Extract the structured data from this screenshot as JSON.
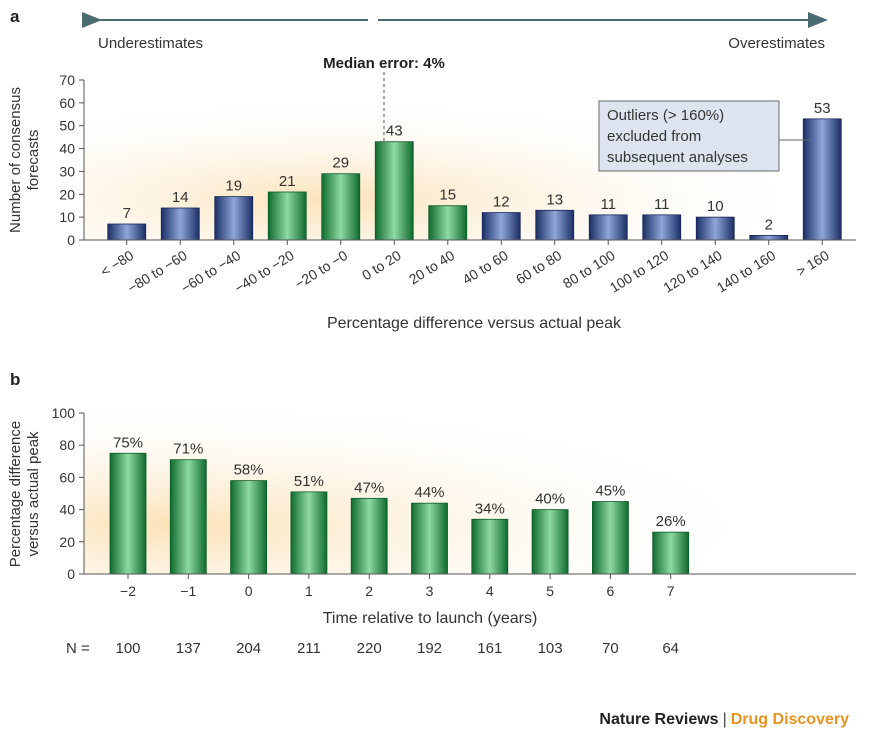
{
  "panel_a": {
    "label": "a",
    "underestimates": "Underestimates",
    "overestimates": "Overestimates",
    "median_label": "Median error: 4%",
    "outlier_note": [
      "Outliers (> 160%)",
      "excluded from",
      "subsequent analyses"
    ]
  },
  "panel_b": {
    "label": "b",
    "n_label": "N =",
    "n_values": [
      "100",
      "137",
      "204",
      "211",
      "220",
      "192",
      "161",
      "103",
      "70",
      "64"
    ]
  },
  "footer": {
    "journal": "Nature Reviews",
    "separator": "|",
    "section": "Drug Discovery"
  },
  "colors": {
    "green": "#2e9a4e",
    "blue": "#2e4a8c",
    "shade": "#fbe6c4",
    "arrow": "#4a6b6f"
  },
  "chart_data": [
    {
      "type": "bar",
      "title": "",
      "xlabel": "Percentage difference versus actual peak",
      "ylabel": [
        "Number of consensus",
        "forecasts"
      ],
      "ylim": [
        0,
        70
      ],
      "yticks": [
        "0",
        "10",
        "20",
        "30",
        "40",
        "50",
        "60",
        "70"
      ],
      "categories": [
        "< −80",
        "−80 to −60",
        "−60 to −40",
        "−40 to −20",
        "−20 to −0",
        "0 to 20",
        "20 to 40",
        "40 to 60",
        "60 to 80",
        "80 to 100",
        "100 to 120",
        "120 to 140",
        "140 to 160",
        "> 160"
      ],
      "values": [
        7,
        14,
        19,
        21,
        29,
        43,
        15,
        12,
        13,
        11,
        11,
        10,
        2,
        53
      ],
      "labels": [
        "7",
        "14",
        "19",
        "21",
        "29",
        "43",
        "15",
        "12",
        "13",
        "11",
        "11",
        "10",
        "2",
        "53"
      ],
      "bar_colors": [
        "blue",
        "blue",
        "blue",
        "green",
        "green",
        "green",
        "green",
        "blue",
        "blue",
        "blue",
        "blue",
        "blue",
        "blue",
        "blue"
      ],
      "median_x_between": "−20 to −0 | 0 to 20",
      "grid": false
    },
    {
      "type": "bar",
      "title": "",
      "xlabel": "Time relative to launch (years)",
      "ylabel": [
        "Percentage difference",
        "versus actual peak"
      ],
      "ylim": [
        0,
        100
      ],
      "yticks": [
        "0",
        "20",
        "40",
        "60",
        "80",
        "100"
      ],
      "categories": [
        "−2",
        "−1",
        "0",
        "1",
        "2",
        "3",
        "4",
        "5",
        "6",
        "7"
      ],
      "values": [
        75,
        71,
        58,
        51,
        47,
        44,
        34,
        40,
        45,
        26
      ],
      "labels": [
        "75%",
        "71%",
        "58%",
        "51%",
        "47%",
        "44%",
        "34%",
        "40%",
        "45%",
        "26%"
      ],
      "grid": false
    }
  ]
}
